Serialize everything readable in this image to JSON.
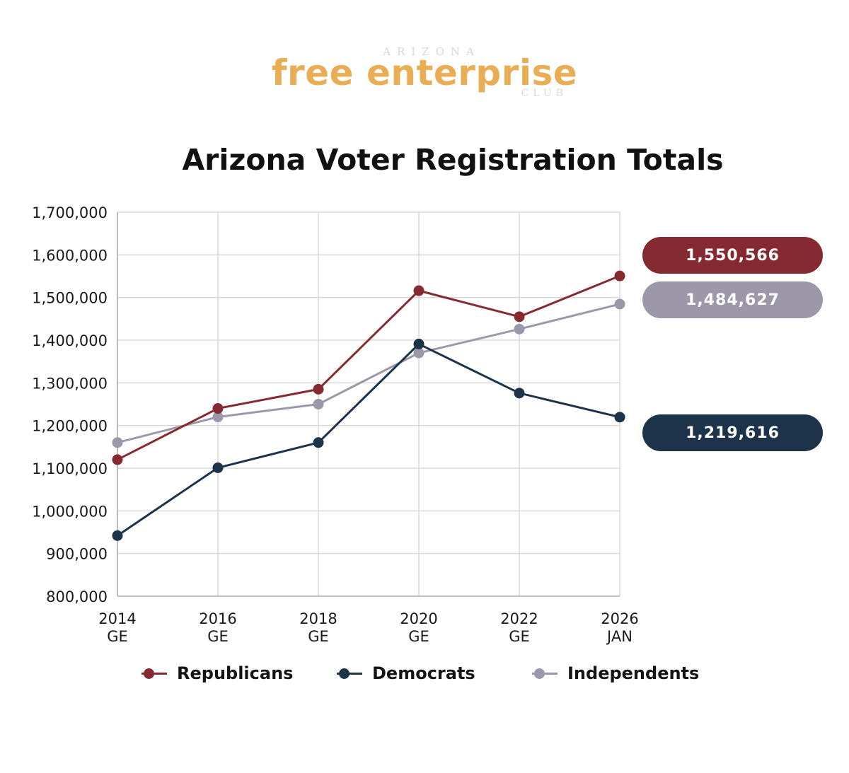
{
  "logo": {
    "top": "ARIZONA",
    "main": "free enterprise",
    "bottom": "CLUB"
  },
  "chart_data": {
    "type": "line",
    "title": "Arizona Voter Registration Totals",
    "xlabel": "",
    "ylabel": "",
    "categories": [
      [
        "2014",
        "GE"
      ],
      [
        "2016",
        "GE"
      ],
      [
        "2018",
        "GE"
      ],
      [
        "2020",
        "GE"
      ],
      [
        "2022",
        "GE"
      ],
      [
        "2026",
        "JAN"
      ]
    ],
    "ylim": [
      800000,
      1700000
    ],
    "yticks": [
      800000,
      900000,
      1000000,
      1100000,
      1200000,
      1300000,
      1400000,
      1500000,
      1600000,
      1700000
    ],
    "ytick_labels": [
      "800,000",
      "900,000",
      "1,000,000",
      "1,100,000",
      "1,200,000",
      "1,300,000",
      "1,400,000",
      "1,500,000",
      "1,600,000",
      "1,700,000"
    ],
    "grid": true,
    "series": [
      {
        "name": "Republicans",
        "color": "#862a31",
        "values": [
          1120000,
          1240000,
          1285000,
          1516000,
          1455000,
          1550566
        ],
        "end_label": "1,550,566"
      },
      {
        "name": "Democrats",
        "color": "#1d334a",
        "values": [
          942000,
          1101000,
          1160000,
          1391000,
          1276000,
          1219616
        ],
        "end_label": "1,219,616"
      },
      {
        "name": "Independents",
        "color": "#9d97aa",
        "values": [
          1160000,
          1220000,
          1250000,
          1370000,
          1426000,
          1484627
        ],
        "end_label": "1,484,627"
      }
    ],
    "legend_position": "bottom"
  }
}
